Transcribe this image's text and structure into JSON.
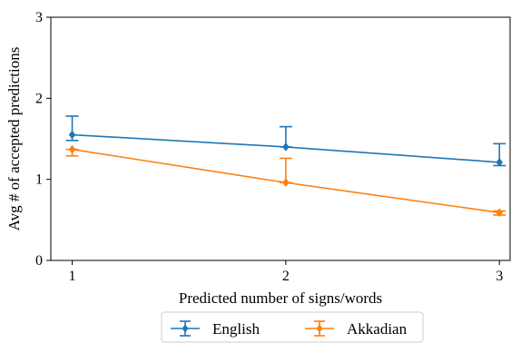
{
  "chart_data": {
    "type": "line",
    "title": "",
    "xlabel": "Predicted number of signs/words",
    "ylabel": "Avg # of accepted predictions",
    "x": [
      1,
      2,
      3
    ],
    "xticks": [
      "1",
      "2",
      "3"
    ],
    "yticks": [
      "0",
      "1",
      "2",
      "3"
    ],
    "xlim": [
      0.9,
      3.05
    ],
    "ylim": [
      0,
      3
    ],
    "grid": false,
    "legend_position": "bottom-center-outside",
    "series": [
      {
        "name": "English",
        "color": "#1f77b4",
        "values": [
          1.55,
          1.4,
          1.21
        ],
        "err_low": [
          1.48,
          1.4,
          1.17
        ],
        "err_high": [
          1.78,
          1.65,
          1.44
        ]
      },
      {
        "name": "Akkadian",
        "color": "#ff7f0e",
        "values": [
          1.37,
          0.96,
          0.59
        ],
        "err_low": [
          1.29,
          0.96,
          0.56
        ],
        "err_high": [
          1.37,
          1.26,
          0.61
        ]
      }
    ]
  }
}
